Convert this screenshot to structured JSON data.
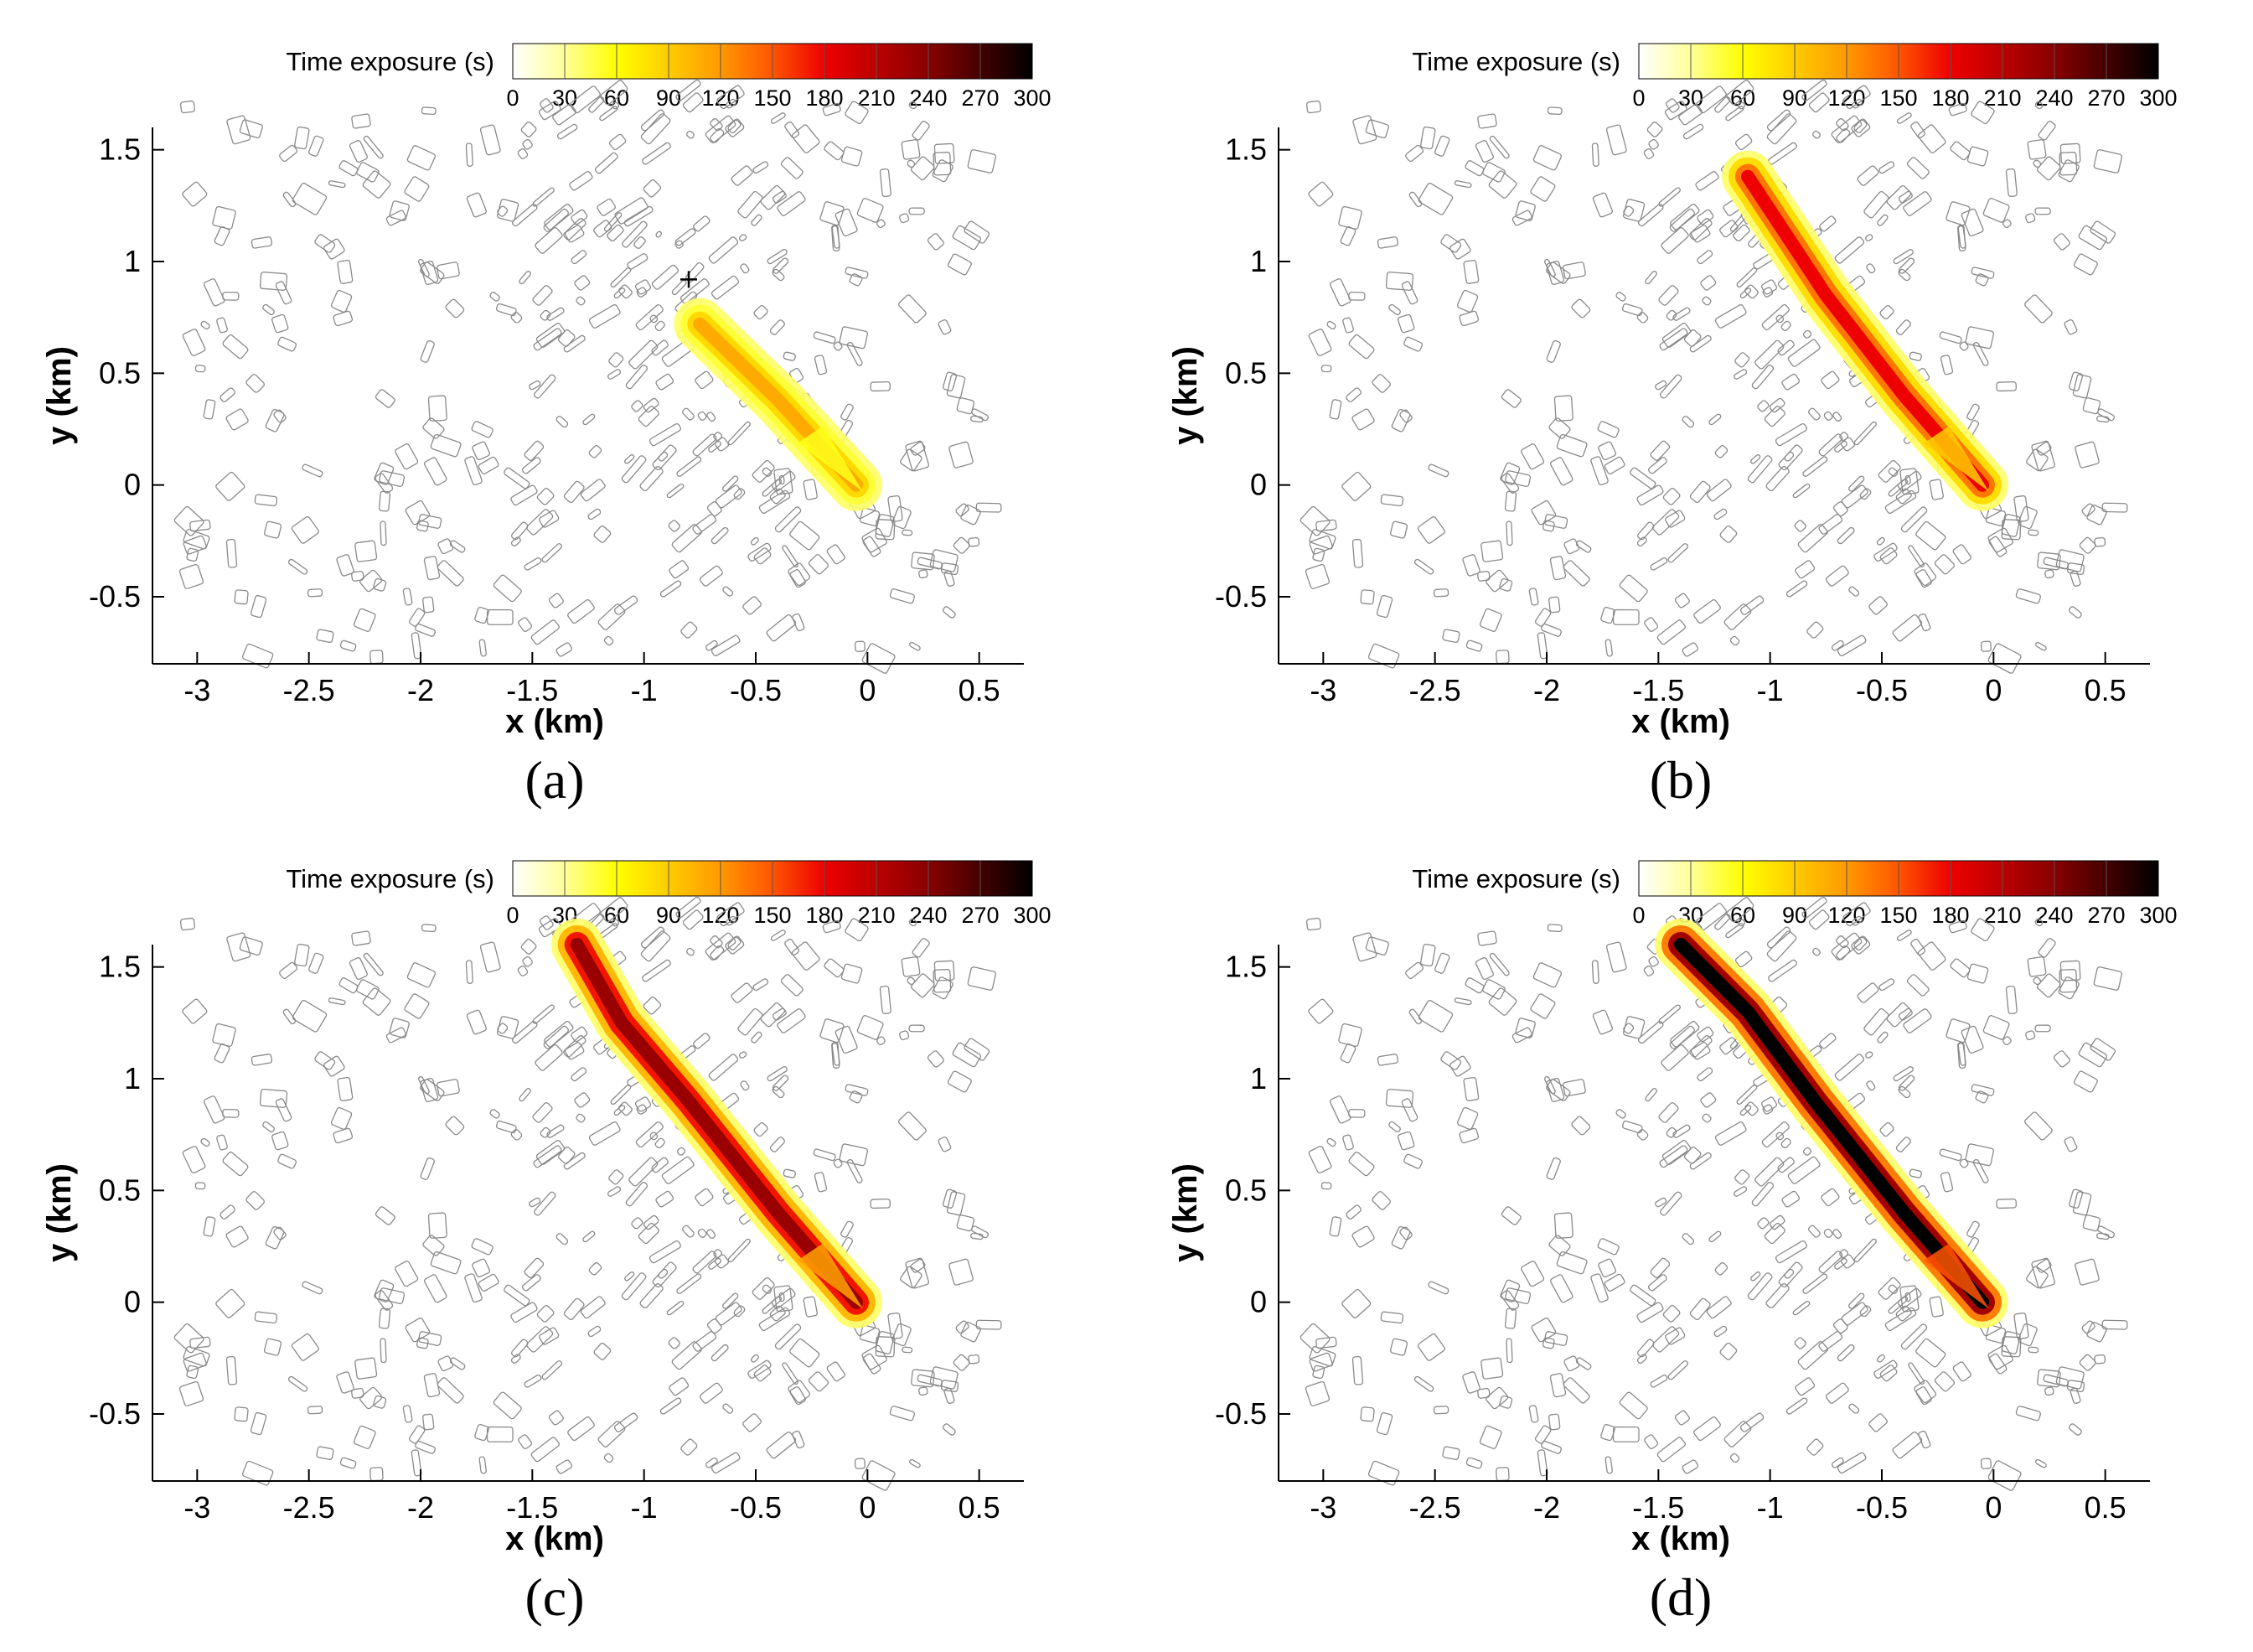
{
  "colorbar": {
    "title": "Time exposure (s)",
    "ticks": [
      0,
      30,
      60,
      90,
      120,
      150,
      180,
      210,
      240,
      270,
      300
    ],
    "range": [
      0,
      300
    ],
    "colors": [
      "#ffffff",
      "#ffff99",
      "#ffff00",
      "#ffcc00",
      "#ff9900",
      "#ff5500",
      "#ee0000",
      "#bb0000",
      "#880000",
      "#440000",
      "#000000"
    ]
  },
  "chart_data": [
    {
      "type": "heatmap",
      "panel": "(a)",
      "title": "",
      "xlabel": "x (km)",
      "ylabel": "y (km)",
      "xlim": [
        -3.2,
        0.7
      ],
      "ylim": [
        -0.8,
        1.6
      ],
      "xticks": [
        -3,
        -2.5,
        -2,
        -1.5,
        -1,
        -0.5,
        0,
        0.5
      ],
      "yticks": [
        -0.5,
        0,
        0.5,
        1,
        1.5
      ],
      "source_marker": {
        "x": -0.8,
        "y": 0.92
      },
      "plume_centerline": [
        [
          -0.05,
          0.0
        ],
        [
          -0.4,
          0.38
        ],
        [
          -0.75,
          0.72
        ]
      ],
      "plume_peak_exposure": 110
    },
    {
      "type": "heatmap",
      "panel": "(b)",
      "title": "",
      "xlabel": "x (km)",
      "ylabel": "y (km)",
      "xlim": [
        -3.2,
        0.7
      ],
      "ylim": [
        -0.8,
        1.6
      ],
      "xticks": [
        -3,
        -2.5,
        -2,
        -1.5,
        -1,
        -0.5,
        0,
        0.5
      ],
      "yticks": [
        -0.5,
        0,
        0.5,
        1,
        1.5
      ],
      "plume_centerline": [
        [
          -0.05,
          0.0
        ],
        [
          -0.4,
          0.4
        ],
        [
          -0.75,
          0.85
        ],
        [
          -1.1,
          1.38
        ]
      ],
      "plume_peak_exposure": 180
    },
    {
      "type": "heatmap",
      "panel": "(c)",
      "title": "",
      "xlabel": "x (km)",
      "ylabel": "y (km)",
      "xlim": [
        -3.2,
        0.7
      ],
      "ylim": [
        -0.8,
        1.6
      ],
      "xticks": [
        -3,
        -2.5,
        -2,
        -1.5,
        -1,
        -0.5,
        0,
        0.5
      ],
      "yticks": [
        -0.5,
        0,
        0.5,
        1,
        1.5
      ],
      "plume_centerline": [
        [
          -0.05,
          0.0
        ],
        [
          -0.4,
          0.4
        ],
        [
          -0.8,
          0.9
        ],
        [
          -1.1,
          1.25
        ],
        [
          -1.3,
          1.6
        ]
      ],
      "plume_peak_exposure": 230
    },
    {
      "type": "heatmap",
      "panel": "(d)",
      "title": "",
      "xlabel": "x (km)",
      "ylabel": "y (km)",
      "xlim": [
        -3.2,
        0.7
      ],
      "ylim": [
        -0.8,
        1.6
      ],
      "xticks": [
        -3,
        -2.5,
        -2,
        -1.5,
        -1,
        -0.5,
        0,
        0.5
      ],
      "yticks": [
        -0.5,
        0,
        0.5,
        1,
        1.5
      ],
      "plume_centerline": [
        [
          -0.05,
          0.0
        ],
        [
          -0.4,
          0.4
        ],
        [
          -0.8,
          0.9
        ],
        [
          -1.1,
          1.3
        ],
        [
          -1.4,
          1.6
        ]
      ],
      "plume_peak_exposure": 300
    }
  ],
  "captions": [
    "(a)",
    "(b)",
    "(c)",
    "(d)"
  ]
}
